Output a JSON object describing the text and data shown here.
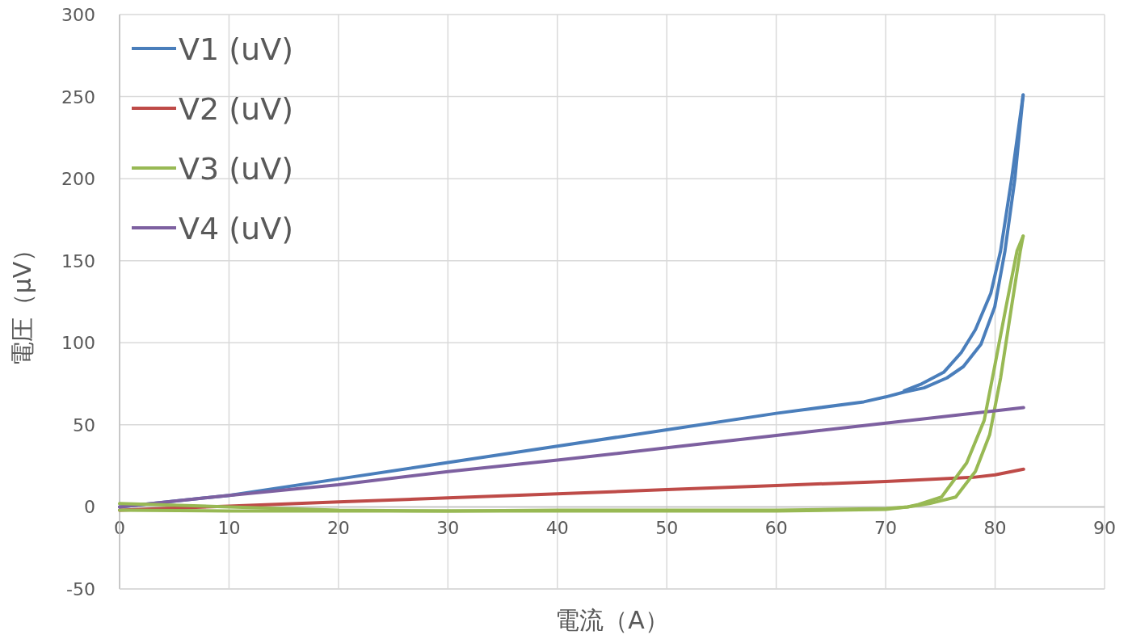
{
  "chart_data": {
    "type": "line",
    "xlabel": "電流（A）",
    "ylabel": "電圧（μV）",
    "xlim": [
      0,
      90
    ],
    "ylim": [
      -50,
      300
    ],
    "xticks": [
      0,
      10,
      20,
      30,
      40,
      50,
      60,
      70,
      80,
      90
    ],
    "yticks": [
      -50,
      0,
      50,
      100,
      150,
      200,
      250,
      300
    ],
    "grid": true,
    "legend": "top left",
    "series": [
      {
        "name": "V1 (uV)",
        "color": "#4a7ebb",
        "x": [
          0,
          10,
          20,
          30,
          40,
          50,
          60,
          68,
          70,
          71.7,
          73.5,
          75.6,
          77.1,
          78.7,
          79.97,
          80.9,
          81.8,
          82.56
        ],
        "values": [
          0,
          7,
          17,
          27,
          37,
          47,
          57,
          64,
          67,
          70,
          72.5,
          78.6,
          85.5,
          99,
          122,
          156,
          199.5,
          251
        ]
      },
      {
        "name": "V2 (uV)",
        "color": "#be4b48",
        "x": [
          0,
          10,
          20,
          30,
          40,
          50,
          60,
          70,
          78,
          80,
          82.6
        ],
        "values": [
          -2,
          0.5,
          3,
          5.5,
          8,
          10.5,
          13,
          15.5,
          18,
          19.5,
          23
        ]
      },
      {
        "name": "V3 (uV)",
        "color": "#98b954",
        "x": [
          0,
          10,
          20,
          30,
          40,
          50,
          60,
          70,
          72,
          74,
          76.4,
          78.2,
          79.5,
          80.5,
          81.5,
          82.3,
          82.56
        ],
        "values": [
          -2,
          -2.5,
          -2.5,
          -2.5,
          -2.5,
          -2.5,
          -2.5,
          -1.5,
          0,
          2,
          6,
          21.6,
          44,
          78.6,
          122,
          156,
          165
        ]
      },
      {
        "name": "V4 (uV)",
        "color": "#7d60a0",
        "x": [
          0,
          10,
          20,
          30,
          40,
          50,
          60,
          70,
          82.6
        ],
        "values": [
          0,
          7,
          13.5,
          21.5,
          28.5,
          36,
          43.5,
          51,
          60.5
        ]
      },
      {
        "color": "#4a7ebb",
        "x": [
          71.7,
          73.3,
          75.3,
          76.9,
          78.2,
          79.6,
          80.5,
          81.5,
          82.56
        ],
        "values": [
          70.8,
          75,
          82,
          94,
          108,
          130,
          156,
          199.5,
          251
        ]
      },
      {
        "color": "#98b954",
        "x": [
          0,
          10,
          20,
          30,
          40,
          50,
          60,
          70,
          72,
          73,
          75.1,
          77.4,
          79,
          80,
          81,
          82,
          82.56
        ],
        "values": [
          2,
          0,
          -2,
          -2.5,
          -2,
          -2,
          -2,
          -1,
          0,
          1.5,
          6,
          26.8,
          52.7,
          87,
          122,
          156,
          165
        ]
      }
    ]
  }
}
